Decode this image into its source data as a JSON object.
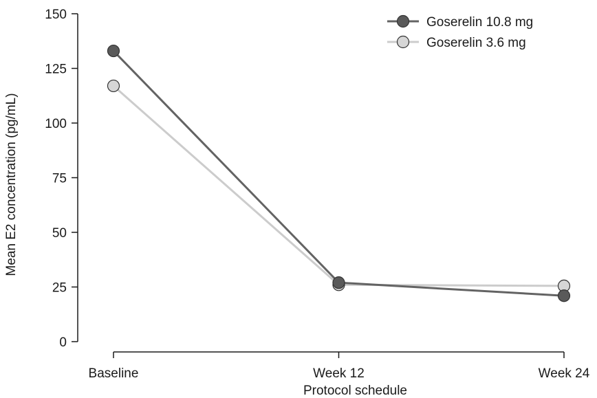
{
  "chart_data": {
    "type": "line",
    "categories": [
      "Baseline",
      "Week 12",
      "Week 24"
    ],
    "series": [
      {
        "name": "Goserelin 10.8 mg",
        "values": [
          133,
          27,
          21
        ],
        "line_color": "#636363",
        "marker_fill": "#5a5a5a"
      },
      {
        "name": "Goserelin 3.6 mg",
        "values": [
          117,
          26,
          25.5
        ],
        "line_color": "#cccccc",
        "marker_fill": "#d6d6d6"
      }
    ],
    "xlabel": "Protocol schedule",
    "ylabel": "Mean E2 concentration (pg/mL)",
    "ylim": [
      0,
      150
    ],
    "yticks": [
      0,
      25,
      50,
      75,
      100,
      125,
      150
    ],
    "legend_position": "top-right",
    "grid": false
  }
}
